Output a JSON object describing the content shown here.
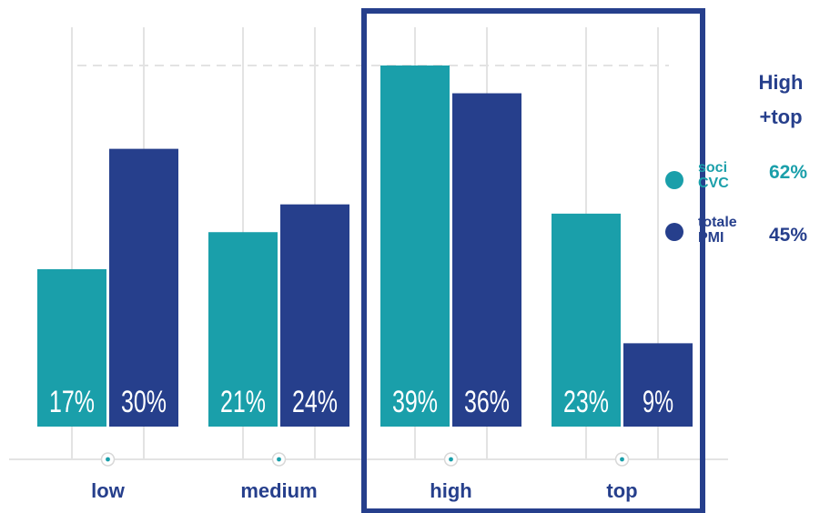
{
  "colors": {
    "teal": "#1a9faa",
    "navy": "#263f8c",
    "grid": "#e3e3e3",
    "frame": "#263f8c"
  },
  "chart_data": {
    "type": "bar",
    "categories": [
      "low",
      "medium",
      "high",
      "top"
    ],
    "series": [
      {
        "name": "soci CVC",
        "values": [
          17,
          21,
          39,
          23
        ],
        "labels": [
          "17%",
          "21%",
          "39%",
          "23%"
        ]
      },
      {
        "name": "totale PMI",
        "values": [
          30,
          24,
          36,
          9
        ],
        "labels": [
          "30%",
          "24%",
          "36%",
          "9%"
        ]
      }
    ],
    "ylim": [
      0,
      39
    ],
    "highlight_categories": [
      "high",
      "top"
    ],
    "grid": true
  },
  "side_panel": {
    "title": [
      "High",
      "+top"
    ],
    "legend": [
      {
        "name_lines": [
          "soci",
          "CVC"
        ],
        "value": "62%"
      },
      {
        "name_lines": [
          "totale",
          "PMI"
        ],
        "value": "45%"
      }
    ]
  }
}
